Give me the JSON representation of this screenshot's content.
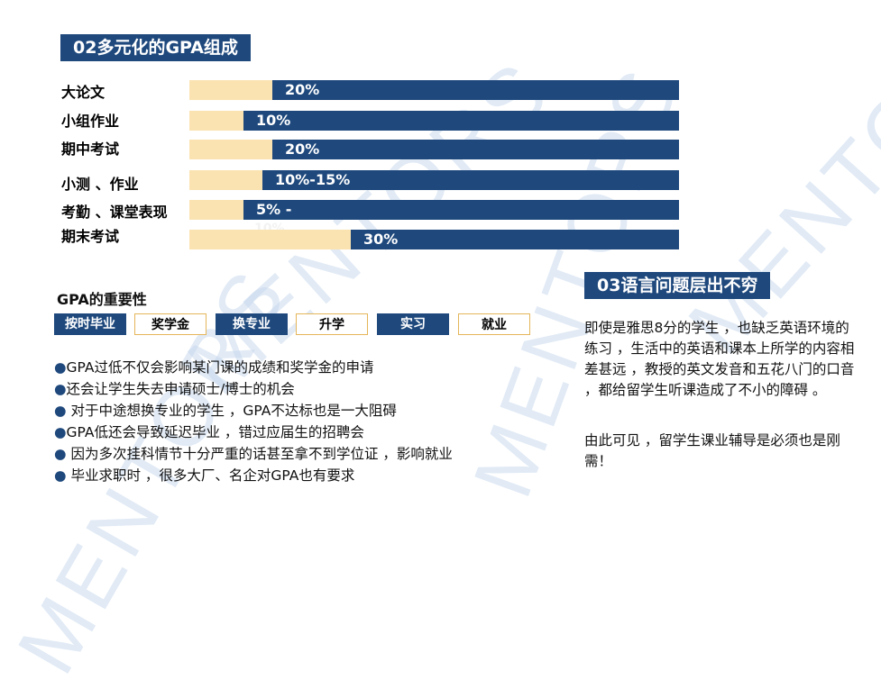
{
  "watermark": "MENTORS",
  "sections": {
    "gpa_composition_title": "02多元化的GPA组成",
    "language_title": "03语言问题层出不穷"
  },
  "chart_data": {
    "type": "bar",
    "orientation": "horizontal",
    "categories": [
      "大论文",
      "小组作业",
      "期中考试",
      "小测 、作业",
      "考勤 、课堂表现",
      "期末考试"
    ],
    "value_labels": [
      "20%",
      "10%",
      "20%",
      "10%-15%",
      "5% -",
      "30%"
    ],
    "value_label_extra": [
      "",
      "",
      "",
      "",
      "10%",
      ""
    ],
    "fill_fraction": [
      0.83,
      0.89,
      0.83,
      0.85,
      0.89,
      0.67
    ],
    "colors": {
      "fill": "#1f497d",
      "track": "#fae3b1"
    }
  },
  "importance": {
    "heading": "GPA的重要性",
    "tags": [
      {
        "label": "按时毕业",
        "style": "dark"
      },
      {
        "label": "奖学金",
        "style": "light"
      },
      {
        "label": "换专业",
        "style": "dark"
      },
      {
        "label": "升学",
        "style": "light"
      },
      {
        "label": "实习",
        "style": "dark"
      },
      {
        "label": "就业",
        "style": "light"
      }
    ],
    "bullets": [
      "GPA过低不仅会影响某门课的成绩和奖学金的申请",
      "还会让学生失去申请硕士/博士的机会",
      " 对于中途想换专业的学生 ，GPA不达标也是一大阻碍",
      "GPA低还会导致延迟毕业 ，错过应届生的招聘会",
      " 因为多次挂科情节十分严重的话甚至拿不到学位证 ，影响就业",
      " 毕业求职时 ，很多大厂、名企对GPA也有要求"
    ]
  },
  "language": {
    "para1": " 即使是雅思8分的学生 ，也缺乏英语环境的练习 ，生活中的英语和课本上所学的内容相差甚远 ，教授的英文发音和五花八门的口音 ，都给留学生听课造成了不小的障碍 。",
    "para2": " 由此可见 ，留学生课业辅导是必须也是刚需！"
  }
}
